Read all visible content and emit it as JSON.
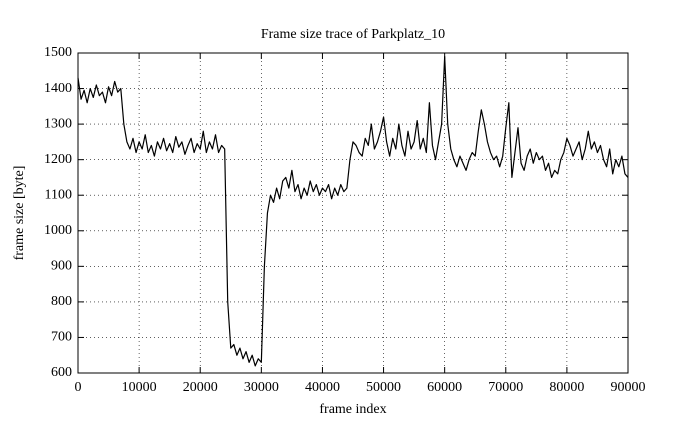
{
  "chart_data": {
    "type": "line",
    "title": "Frame size trace of Parkplatz_10",
    "xlabel": "frame index",
    "ylabel": "frame size [byte]",
    "color": "#000000",
    "grid": true,
    "xlim": [
      0,
      90000
    ],
    "ylim": [
      600,
      1500
    ],
    "xticks": [
      0,
      10000,
      20000,
      30000,
      40000,
      50000,
      60000,
      70000,
      80000,
      90000
    ],
    "yticks": [
      600,
      700,
      800,
      900,
      1000,
      1100,
      1200,
      1300,
      1400,
      1500
    ],
    "x": [
      0,
      500,
      1000,
      1500,
      2000,
      2500,
      3000,
      3500,
      4000,
      4500,
      5000,
      5500,
      6000,
      6500,
      7000,
      7500,
      8000,
      8500,
      9000,
      9500,
      10000,
      10500,
      11000,
      11500,
      12000,
      12500,
      13000,
      13500,
      14000,
      14500,
      15000,
      15500,
      16000,
      16500,
      17000,
      17500,
      18000,
      18500,
      19000,
      19500,
      20000,
      20500,
      21000,
      21500,
      22000,
      22500,
      23000,
      23500,
      24000,
      24500,
      25000,
      25500,
      26000,
      26500,
      27000,
      27500,
      28000,
      28500,
      29000,
      29500,
      30000,
      30500,
      31000,
      31500,
      32000,
      32500,
      33000,
      33500,
      34000,
      34500,
      35000,
      35500,
      36000,
      36500,
      37000,
      37500,
      38000,
      38500,
      39000,
      39500,
      40000,
      40500,
      41000,
      41500,
      42000,
      42500,
      43000,
      43500,
      44000,
      44500,
      45000,
      45500,
      46000,
      46500,
      47000,
      47500,
      48000,
      48500,
      49000,
      49500,
      50000,
      50500,
      51000,
      51500,
      52000,
      52500,
      53000,
      53500,
      54000,
      54500,
      55000,
      55500,
      56000,
      56500,
      57000,
      57500,
      58000,
      58500,
      59000,
      59500,
      60000,
      60500,
      61000,
      61500,
      62000,
      62500,
      63000,
      63500,
      64000,
      64500,
      65000,
      65500,
      66000,
      66500,
      67000,
      67500,
      68000,
      68500,
      69000,
      69500,
      70000,
      70500,
      71000,
      71500,
      72000,
      72500,
      73000,
      73500,
      74000,
      74500,
      75000,
      75500,
      76000,
      76500,
      77000,
      77500,
      78000,
      78500,
      79000,
      79500,
      80000,
      80500,
      81000,
      81500,
      82000,
      82500,
      83000,
      83500,
      84000,
      84500,
      85000,
      85500,
      86000,
      86500,
      87000,
      87500,
      88000,
      88500,
      89000,
      89500,
      90000
    ],
    "values": [
      1430,
      1370,
      1395,
      1360,
      1400,
      1375,
      1410,
      1380,
      1390,
      1360,
      1405,
      1380,
      1420,
      1390,
      1400,
      1300,
      1250,
      1230,
      1260,
      1220,
      1250,
      1230,
      1270,
      1220,
      1240,
      1210,
      1250,
      1230,
      1260,
      1225,
      1245,
      1220,
      1265,
      1235,
      1250,
      1215,
      1240,
      1260,
      1220,
      1245,
      1230,
      1280,
      1220,
      1250,
      1230,
      1270,
      1220,
      1240,
      1230,
      800,
      670,
      680,
      650,
      670,
      640,
      660,
      630,
      650,
      620,
      640,
      630,
      900,
      1050,
      1100,
      1080,
      1120,
      1090,
      1140,
      1150,
      1120,
      1170,
      1110,
      1130,
      1090,
      1120,
      1100,
      1140,
      1110,
      1130,
      1100,
      1120,
      1110,
      1130,
      1090,
      1120,
      1100,
      1130,
      1110,
      1120,
      1200,
      1250,
      1240,
      1220,
      1210,
      1260,
      1240,
      1300,
      1230,
      1250,
      1280,
      1320,
      1250,
      1210,
      1260,
      1230,
      1300,
      1240,
      1210,
      1280,
      1230,
      1250,
      1310,
      1230,
      1260,
      1220,
      1360,
      1240,
      1200,
      1250,
      1300,
      1490,
      1300,
      1230,
      1200,
      1180,
      1210,
      1190,
      1170,
      1200,
      1220,
      1210,
      1280,
      1340,
      1300,
      1250,
      1220,
      1200,
      1210,
      1180,
      1210,
      1290,
      1360,
      1150,
      1220,
      1290,
      1190,
      1170,
      1210,
      1230,
      1190,
      1220,
      1200,
      1210,
      1170,
      1190,
      1150,
      1170,
      1160,
      1200,
      1220,
      1260,
      1240,
      1210,
      1230,
      1250,
      1200,
      1230,
      1280,
      1230,
      1250,
      1220,
      1240,
      1200,
      1180,
      1230,
      1160,
      1200,
      1180,
      1210,
      1160,
      1150
    ]
  }
}
